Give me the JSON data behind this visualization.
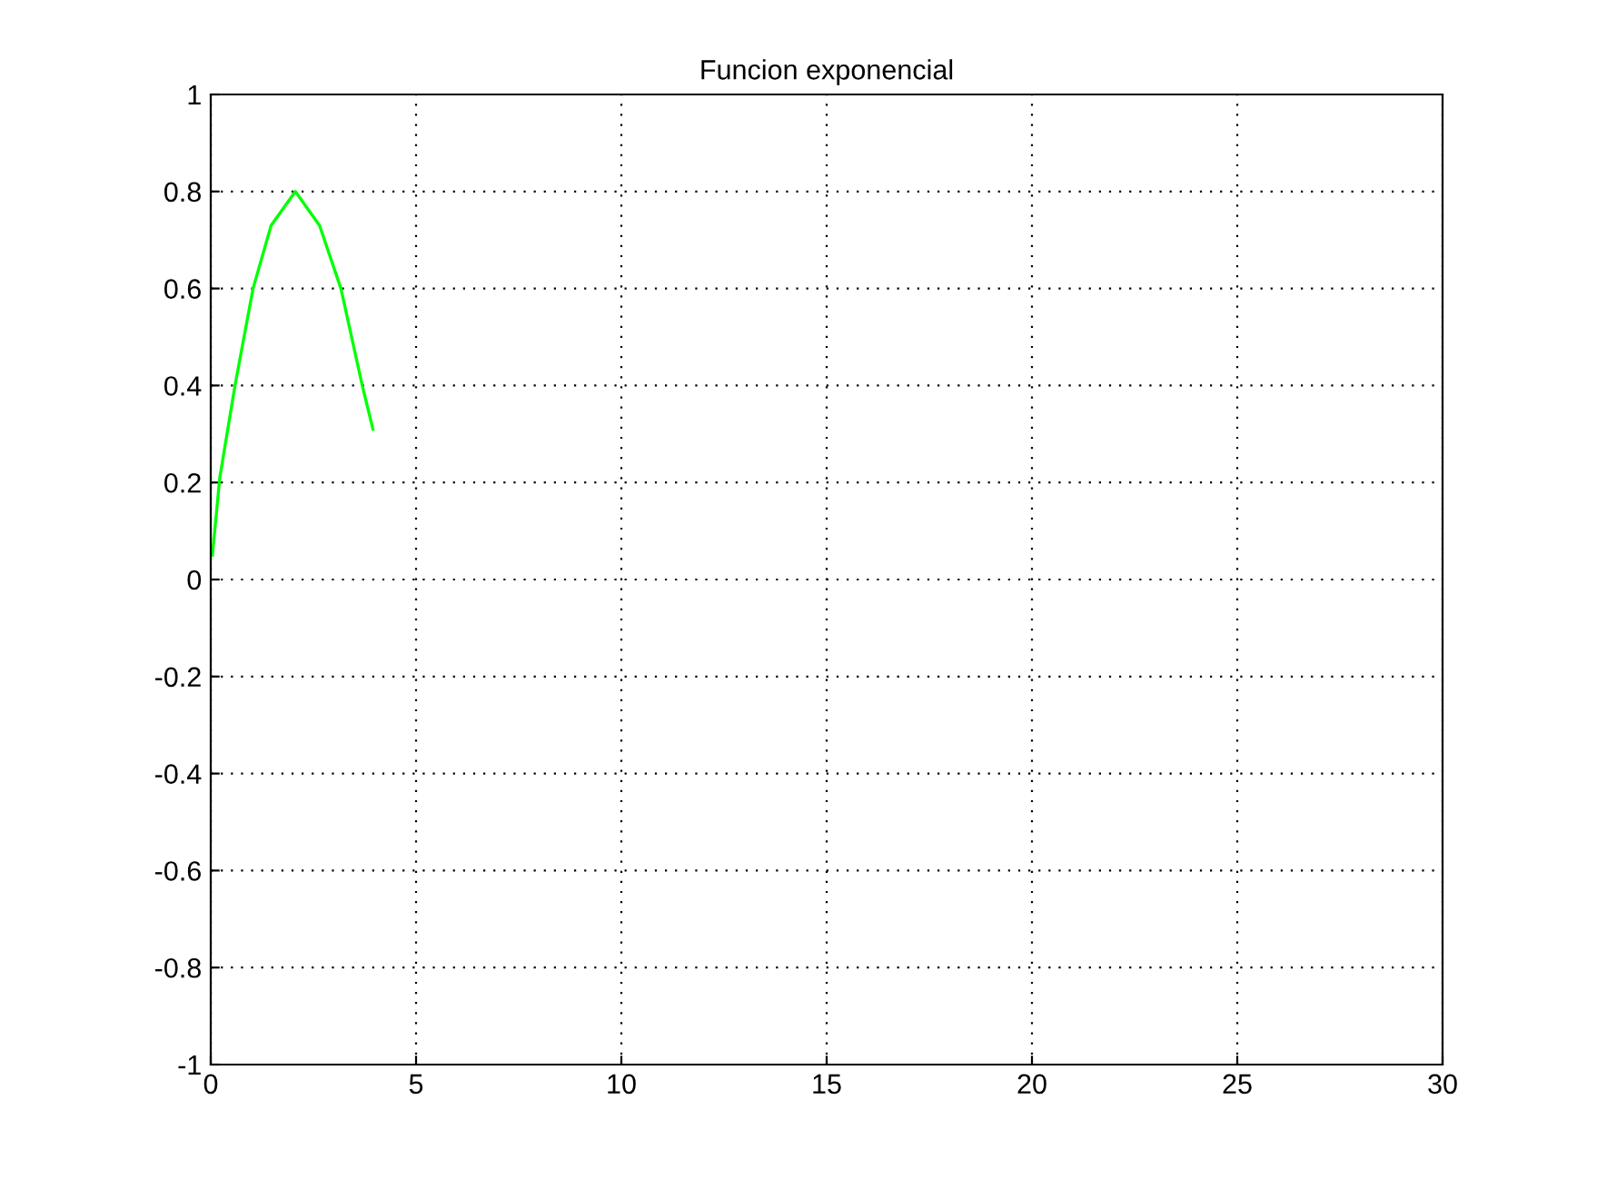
{
  "chart_data": {
    "type": "line",
    "title": "Funcion exponencial",
    "series": [
      {
        "color": "#00ff00",
        "x": [
          0.04,
          0.22,
          0.59,
          1.03,
          1.47,
          2.06,
          2.65,
          3.17,
          3.69,
          3.95
        ],
        "values": [
          0.05,
          0.21,
          0.4,
          0.6,
          0.73,
          0.8,
          0.73,
          0.6,
          0.4,
          0.31
        ]
      }
    ],
    "xlim": [
      0,
      30
    ],
    "xticks": [
      0,
      5,
      10,
      15,
      20,
      25,
      30
    ],
    "ylim": [
      -1,
      1
    ],
    "yticks": [
      -1,
      -0.8,
      -0.6,
      -0.4,
      -0.2,
      0,
      0.2,
      0.4,
      0.6,
      0.8,
      1
    ],
    "grid": true,
    "line_style": "solid",
    "marker": "none"
  }
}
